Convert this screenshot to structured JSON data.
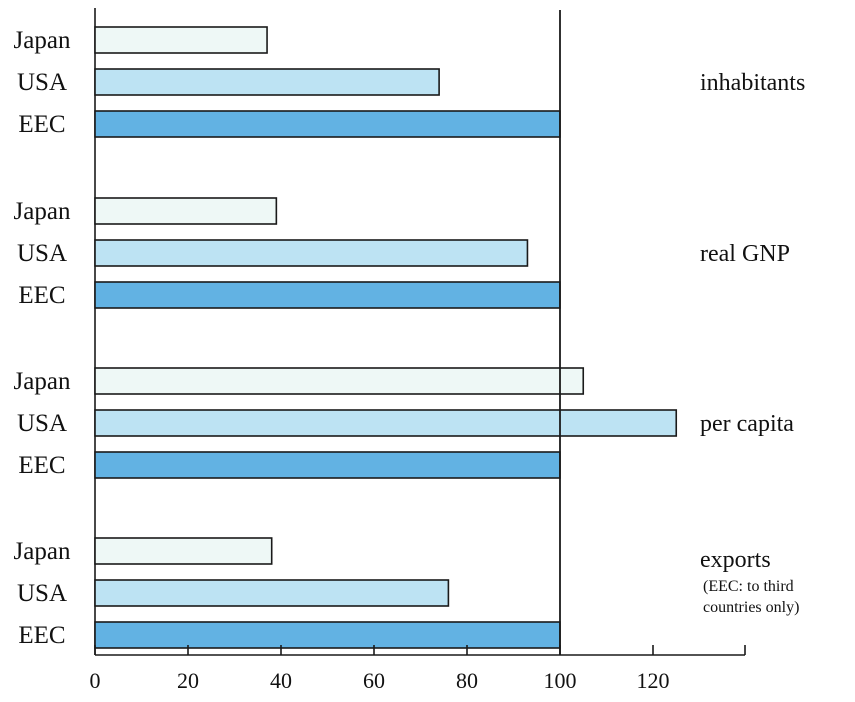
{
  "chart_data": {
    "type": "bar",
    "orientation": "horizontal",
    "title": "",
    "xlabel": "",
    "ylabel": "",
    "xlim": [
      0,
      140
    ],
    "x_ticks": [
      0,
      20,
      40,
      60,
      80,
      100,
      120
    ],
    "reference_line": 100,
    "grid": false,
    "colors": {
      "Japan": "#eef8f6",
      "USA": "#bde3f3",
      "EEC": "#62b2e3"
    },
    "groups": [
      {
        "label": "inhabitants",
        "note": [],
        "bars": [
          {
            "category": "Japan",
            "value": 37
          },
          {
            "category": "USA",
            "value": 74
          },
          {
            "category": "EEC",
            "value": 100
          }
        ]
      },
      {
        "label": "real GNP",
        "note": [],
        "bars": [
          {
            "category": "Japan",
            "value": 39
          },
          {
            "category": "USA",
            "value": 93
          },
          {
            "category": "EEC",
            "value": 100
          }
        ]
      },
      {
        "label": "per capita",
        "note": [],
        "bars": [
          {
            "category": "Japan",
            "value": 105
          },
          {
            "category": "USA",
            "value": 125
          },
          {
            "category": "EEC",
            "value": 100
          }
        ]
      },
      {
        "label": "exports",
        "note": [
          "(EEC: to third",
          "countries only)"
        ],
        "bars": [
          {
            "category": "Japan",
            "value": 38
          },
          {
            "category": "USA",
            "value": 76
          },
          {
            "category": "EEC",
            "value": 100
          }
        ]
      }
    ]
  }
}
